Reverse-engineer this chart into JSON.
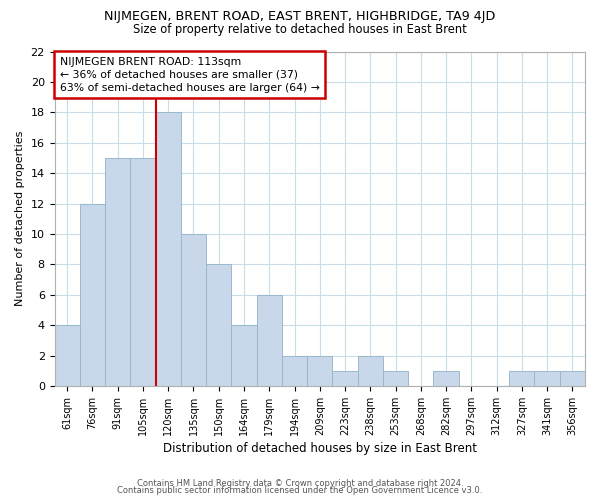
{
  "title": "NIJMEGEN, BRENT ROAD, EAST BRENT, HIGHBRIDGE, TA9 4JD",
  "subtitle": "Size of property relative to detached houses in East Brent",
  "xlabel": "Distribution of detached houses by size in East Brent",
  "ylabel": "Number of detached properties",
  "bar_color": "#c8d8ea",
  "bar_edge_color": "#9ab8cc",
  "grid_color": "#c8dcea",
  "background_color": "#ffffff",
  "categories": [
    "61sqm",
    "76sqm",
    "91sqm",
    "105sqm",
    "120sqm",
    "135sqm",
    "150sqm",
    "164sqm",
    "179sqm",
    "194sqm",
    "209sqm",
    "223sqm",
    "238sqm",
    "253sqm",
    "268sqm",
    "282sqm",
    "297sqm",
    "312sqm",
    "327sqm",
    "341sqm",
    "356sqm"
  ],
  "values": [
    4,
    12,
    15,
    15,
    18,
    10,
    8,
    4,
    6,
    2,
    2,
    1,
    2,
    1,
    0,
    1,
    0,
    0,
    1,
    1,
    1
  ],
  "ylim": [
    0,
    22
  ],
  "yticks": [
    0,
    2,
    4,
    6,
    8,
    10,
    12,
    14,
    16,
    18,
    20,
    22
  ],
  "vline_color": "#cc0000",
  "vline_bar_index": 3.5,
  "annotation_text": "NIJMEGEN BRENT ROAD: 113sqm\n← 36% of detached houses are smaller (37)\n63% of semi-detached houses are larger (64) →",
  "annotation_box_edge": "#cc0000",
  "footer_line1": "Contains HM Land Registry data © Crown copyright and database right 2024.",
  "footer_line2": "Contains public sector information licensed under the Open Government Licence v3.0."
}
